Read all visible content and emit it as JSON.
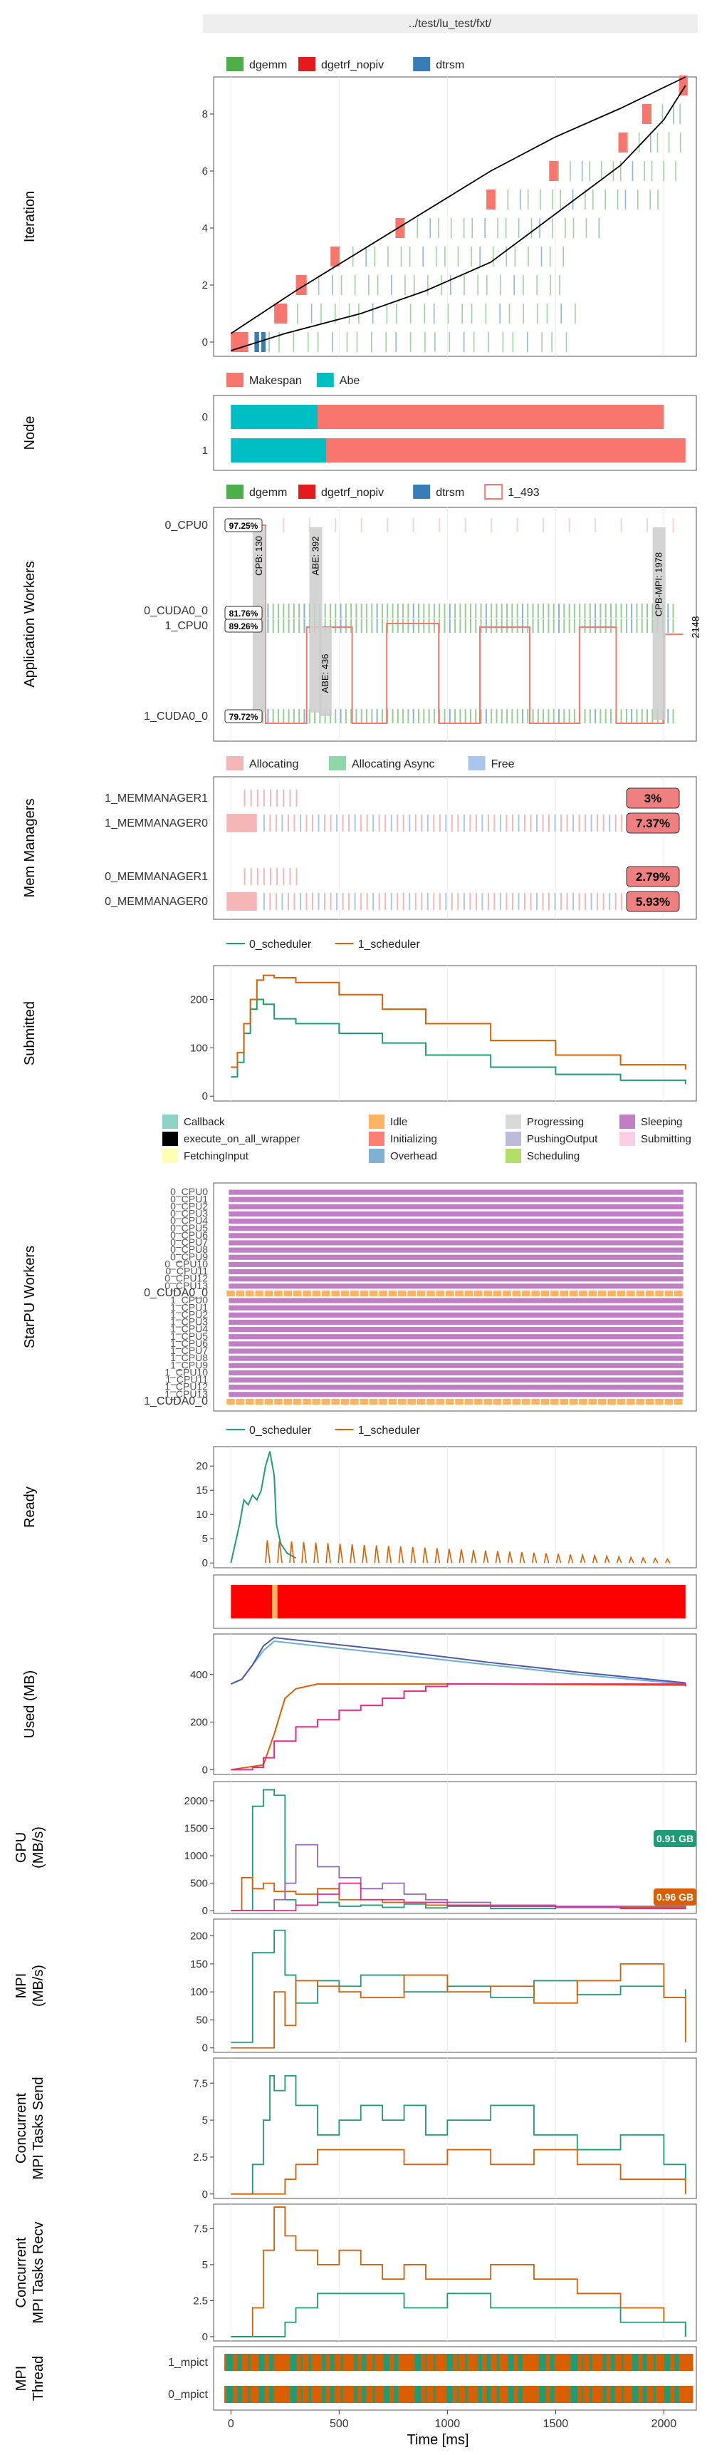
{
  "header": {
    "title": "../test/lu_test/fxt/"
  },
  "x_axis": {
    "label": "Time [ms]",
    "ticks": [
      0,
      500,
      1000,
      1500,
      2000
    ],
    "range": [
      -80,
      2150
    ]
  },
  "colors": {
    "dgemm": "#4daf4a",
    "dgetrf_nopiv": "#e41a1c",
    "dtrsm": "#377eb8",
    "makespan": "#f8766d",
    "abe": "#00bfc4",
    "allocating": "#f4b6b6",
    "allocating_async": "#8fd6a8",
    "free": "#a9c6ee",
    "scheduler0": "#1b9e77",
    "scheduler1": "#d95f02",
    "used_pink": "#e7298a",
    "used_blue": "#4a5aa8",
    "gpu_purple": "#9467bd",
    "mpi_orange": "#d95f02",
    "mpi_green": "#1b9e77",
    "state_idle": "#fdb462",
    "state_sleeping": "#c07ec4",
    "ready_red": "#ff0000"
  },
  "chart_data": [
    {
      "id": "iteration",
      "type": "scatter",
      "ylabel": "Iteration",
      "legend": {
        "placement": "top",
        "entries": [
          "dgemm",
          "dgetrf_nopiv",
          "dtrsm"
        ]
      },
      "y_ticks": [
        0,
        2,
        4,
        6,
        8
      ],
      "ylim": [
        -0.5,
        9.3
      ],
      "tasks": [
        {
          "iter": 0,
          "t": 0,
          "d": 80,
          "k": "dgetrf_nopiv"
        },
        {
          "iter": 0,
          "t": 110,
          "d": 20,
          "k": "dtrsm"
        },
        {
          "iter": 0,
          "t": 140,
          "d": 20,
          "k": "dtrsm"
        },
        {
          "iter": 1,
          "t": 200,
          "d": 60,
          "k": "dgetrf_nopiv"
        },
        {
          "iter": 2,
          "t": 300,
          "d": 50,
          "k": "dgetrf_nopiv"
        },
        {
          "iter": 3,
          "t": 460,
          "d": 40,
          "k": "dgetrf_nopiv"
        },
        {
          "iter": 4,
          "t": 760,
          "d": 40,
          "k": "dgetrf_nopiv"
        },
        {
          "iter": 5,
          "t": 1180,
          "d": 40,
          "k": "dgetrf_nopiv"
        },
        {
          "iter": 6,
          "t": 1470,
          "d": 40,
          "k": "dgetrf_nopiv"
        },
        {
          "iter": 7,
          "t": 1790,
          "d": 40,
          "k": "dgetrf_nopiv"
        },
        {
          "iter": 8,
          "t": 1900,
          "d": 40,
          "k": "dgetrf_nopiv"
        },
        {
          "iter": 9,
          "t": 2070,
          "d": 40,
          "k": "dgetrf_nopiv"
        }
      ],
      "upper_curve": [
        [
          0,
          -0.3
        ],
        [
          250,
          0.3
        ],
        [
          600,
          1.0
        ],
        [
          900,
          1.8
        ],
        [
          1200,
          2.8
        ],
        [
          1500,
          4.5
        ],
        [
          1800,
          6.2
        ],
        [
          2000,
          7.8
        ],
        [
          2100,
          9.0
        ]
      ],
      "lower_curve": [
        [
          0,
          0.3
        ],
        [
          300,
          1.8
        ],
        [
          600,
          3.2
        ],
        [
          900,
          4.6
        ],
        [
          1200,
          6.0
        ],
        [
          1500,
          7.2
        ],
        [
          1800,
          8.2
        ],
        [
          2100,
          9.3
        ]
      ]
    },
    {
      "id": "node",
      "type": "bar",
      "ylabel": "Node",
      "legend": {
        "placement": "top",
        "entries": [
          "Makespan",
          "Abe"
        ]
      },
      "categories": [
        "0",
        "1"
      ],
      "series": [
        {
          "name": "Abe",
          "values": [
            400,
            440
          ]
        },
        {
          "name": "Makespan",
          "values": [
            2000,
            2100
          ]
        }
      ]
    },
    {
      "id": "app_workers",
      "type": "bar",
      "ylabel": "Application Workers",
      "legend": {
        "placement": "top",
        "entries": [
          "dgemm",
          "dgetrf_nopiv",
          "dtrsm",
          "1_493"
        ]
      },
      "workers": [
        "0_CPU0",
        "0_CUDA0_0",
        "1_CPU0",
        "1_CUDA0_0"
      ],
      "percent_labels": [
        "97.25%",
        "81.76%",
        "89.26%",
        "79.72%"
      ],
      "abe_labels": [
        "CPB: 130",
        "ABE: 392",
        "ABE: 436",
        "CPB-MPI: 1978",
        "2148"
      ],
      "abe_markers": [
        {
          "t": 130,
          "label": 0
        },
        {
          "t": 392,
          "label": 1
        },
        {
          "t": 436,
          "label": 2
        },
        {
          "t": 1978,
          "label": 3
        }
      ]
    },
    {
      "id": "mem_managers",
      "type": "bar",
      "ylabel": "Mem Managers",
      "legend": {
        "placement": "top",
        "entries": [
          "Allocating",
          "Allocating Async",
          "Free"
        ]
      },
      "managers": [
        "1_MEMMANAGER1",
        "1_MEMMANAGER0",
        "0_MEMMANAGER1",
        "0_MEMMANAGER0"
      ],
      "percents": [
        "3%",
        "7.37%",
        "2.79%",
        "5.93%"
      ]
    },
    {
      "id": "submitted",
      "type": "line",
      "ylabel": "Submitted",
      "legend": {
        "placement": "top",
        "entries": [
          "0_scheduler",
          "1_scheduler"
        ]
      },
      "y_ticks": [
        0,
        100,
        200
      ],
      "ylim": [
        -10,
        270
      ],
      "series": [
        {
          "name": "0_scheduler",
          "x": [
            0,
            30,
            60,
            90,
            120,
            150,
            200,
            300,
            500,
            700,
            900,
            1200,
            1500,
            1800,
            2100
          ],
          "y": [
            40,
            70,
            130,
            180,
            200,
            190,
            160,
            150,
            130,
            110,
            85,
            60,
            45,
            33,
            25
          ]
        },
        {
          "name": "1_scheduler",
          "x": [
            0,
            30,
            60,
            90,
            120,
            150,
            200,
            300,
            500,
            700,
            900,
            1200,
            1500,
            1800,
            2100
          ],
          "y": [
            60,
            90,
            150,
            200,
            240,
            250,
            245,
            235,
            210,
            180,
            150,
            115,
            85,
            65,
            55
          ]
        }
      ]
    },
    {
      "id": "starpu_workers",
      "type": "bar",
      "ylabel": "StarPU Workers",
      "legend": {
        "placement": "top",
        "entries": [
          "Callback",
          "execute_on_all_wrapper",
          "FetchingInput",
          "Idle",
          "Initializing",
          "Overhead",
          "Progressing",
          "PushingOutput",
          "Scheduling",
          "Sleeping",
          "Submitting"
        ],
        "colors": [
          "#8dd3c7",
          "#000000",
          "#ffffb3",
          "#fdb462",
          "#fb8072",
          "#80b1d3",
          "#d9d9d9",
          "#bebada",
          "#b3de69",
          "#c07ec4",
          "#fccde5"
        ]
      },
      "workers": [
        "0_CPU0",
        "0_CPU1",
        "0_CPU2",
        "0_CPU3",
        "0_CPU4",
        "0_CPU5",
        "0_CPU6",
        "0_CPU7",
        "0_CPU8",
        "0_CPU9",
        "0_CPU10",
        "0_CPU11",
        "0_CPU12",
        "0_CPU13",
        "0_CUDA0_0",
        "1_CPU0",
        "1_CPU1",
        "1_CPU2",
        "1_CPU3",
        "1_CPU4",
        "1_CPU5",
        "1_CPU6",
        "1_CPU7",
        "1_CPU8",
        "1_CPU9",
        "1_CPU10",
        "1_CPU11",
        "1_CPU12",
        "1_CPU13",
        "1_CUDA0_0"
      ]
    },
    {
      "id": "ready",
      "type": "line",
      "ylabel": "Ready",
      "legend": {
        "placement": "top",
        "entries": [
          "0_scheduler",
          "1_scheduler"
        ]
      },
      "y_ticks": [
        0,
        5,
        10,
        15,
        20
      ],
      "ylim": [
        -1,
        24
      ],
      "series": [
        {
          "name": "0_scheduler",
          "x": [
            0,
            40,
            60,
            80,
            100,
            120,
            140,
            160,
            180,
            200,
            210,
            230,
            260,
            300
          ],
          "y": [
            0,
            8,
            13,
            12,
            14,
            13,
            15,
            20,
            23,
            18,
            8,
            4,
            2,
            1
          ]
        },
        {
          "name": "1_scheduler",
          "x": [
            0,
            120,
            140,
            160
          ],
          "y": [
            0,
            1,
            5,
            1
          ]
        }
      ]
    },
    {
      "id": "ready_bar",
      "type": "bar",
      "series": [
        {
          "name": "ready_range",
          "values": [
            2100
          ]
        }
      ]
    },
    {
      "id": "used",
      "type": "line",
      "ylabel": "Used (MB)",
      "y_ticks": [
        0,
        200,
        400
      ],
      "ylim": [
        -20,
        570
      ],
      "series": [
        {
          "name": "blue",
          "x": [
            0,
            50,
            100,
            150,
            200,
            400,
            800,
            1200,
            1600,
            2100
          ],
          "y": [
            360,
            380,
            440,
            500,
            540,
            520,
            480,
            440,
            400,
            360
          ]
        },
        {
          "name": "navy",
          "x": [
            0,
            50,
            100,
            150,
            200,
            400,
            800,
            1200,
            1600,
            2100
          ],
          "y": [
            360,
            380,
            440,
            520,
            555,
            535,
            495,
            450,
            410,
            365
          ]
        },
        {
          "name": "orange",
          "x": [
            0,
            150,
            200,
            250,
            300,
            400,
            500,
            800,
            1200,
            2100
          ],
          "y": [
            0,
            20,
            150,
            300,
            340,
            360,
            360,
            360,
            360,
            355
          ]
        },
        {
          "name": "pink",
          "x": [
            0,
            100,
            150,
            200,
            300,
            400,
            500,
            600,
            700,
            800,
            900,
            1000,
            2100
          ],
          "y": [
            0,
            10,
            50,
            120,
            180,
            210,
            250,
            270,
            300,
            330,
            350,
            360,
            350
          ]
        }
      ]
    },
    {
      "id": "gpu",
      "type": "line",
      "ylabel": "GPU (MB/s)",
      "y_ticks": [
        0,
        500,
        1000,
        1500,
        2000
      ],
      "ylim": [
        -50,
        2350
      ],
      "badges": [
        "0.91 GB",
        "0.96 GB"
      ],
      "series": [
        {
          "name": "green",
          "x": [
            0,
            100,
            150,
            200,
            250,
            300,
            400,
            500,
            600,
            700,
            800,
            900,
            1000,
            1200,
            1500,
            2100
          ],
          "y": [
            0,
            1900,
            2200,
            2100,
            200,
            100,
            150,
            80,
            100,
            60,
            120,
            50,
            80,
            40,
            60,
            50
          ]
        },
        {
          "name": "orange",
          "x": [
            0,
            50,
            100,
            150,
            200,
            300,
            400,
            500,
            700,
            900,
            1200,
            1500,
            2100
          ],
          "y": [
            0,
            600,
            400,
            500,
            350,
            300,
            400,
            200,
            150,
            100,
            80,
            60,
            50
          ]
        },
        {
          "name": "purple",
          "x": [
            0,
            200,
            250,
            300,
            400,
            500,
            600,
            700,
            800,
            900,
            1000,
            1200,
            1500,
            2100
          ],
          "y": [
            0,
            200,
            500,
            1200,
            800,
            600,
            400,
            500,
            300,
            200,
            150,
            100,
            80,
            60
          ]
        },
        {
          "name": "pink",
          "x": [
            0,
            300,
            400,
            500,
            600,
            800,
            1000,
            1200,
            1500,
            1800,
            2100
          ],
          "y": [
            0,
            100,
            300,
            500,
            200,
            150,
            100,
            80,
            60,
            40,
            30
          ]
        }
      ]
    },
    {
      "id": "mpi",
      "type": "line",
      "ylabel": "MPI (MB/s)",
      "y_ticks": [
        0,
        50,
        100,
        150,
        200
      ],
      "ylim": [
        -8,
        230
      ],
      "series": [
        {
          "name": "green",
          "x": [
            0,
            100,
            200,
            250,
            300,
            400,
            500,
            600,
            800,
            1000,
            1200,
            1400,
            1600,
            1800,
            2000,
            2100
          ],
          "y": [
            10,
            170,
            210,
            130,
            80,
            120,
            110,
            130,
            100,
            110,
            90,
            120,
            95,
            110,
            90,
            105
          ]
        },
        {
          "name": "orange",
          "x": [
            0,
            200,
            250,
            300,
            400,
            500,
            600,
            800,
            1000,
            1200,
            1400,
            1600,
            1800,
            2000,
            2100
          ],
          "y": [
            0,
            100,
            40,
            120,
            110,
            100,
            90,
            130,
            100,
            110,
            80,
            120,
            150,
            90,
            10
          ]
        }
      ]
    },
    {
      "id": "mpi_send",
      "type": "line",
      "ylabel": "Concurrent MPI Tasks Send",
      "y_ticks": [
        0.0,
        2.5,
        5.0,
        7.5
      ],
      "ylim": [
        -0.3,
        9.2
      ],
      "series": [
        {
          "name": "green",
          "x": [
            0,
            100,
            150,
            180,
            200,
            250,
            300,
            400,
            500,
            600,
            700,
            800,
            900,
            1000,
            1200,
            1400,
            1600,
            1800,
            2000,
            2100
          ],
          "y": [
            0,
            2,
            5,
            8,
            7,
            8,
            6,
            4,
            5,
            6,
            5,
            6,
            4,
            5,
            6,
            4,
            3,
            4,
            2,
            1
          ]
        },
        {
          "name": "orange",
          "x": [
            0,
            200,
            250,
            300,
            400,
            500,
            600,
            800,
            1000,
            1200,
            1400,
            1600,
            1800,
            2000,
            2100
          ],
          "y": [
            0,
            0,
            1,
            2,
            3,
            3,
            3,
            2,
            3,
            2,
            3,
            2,
            1,
            1,
            0
          ]
        }
      ]
    },
    {
      "id": "mpi_recv",
      "type": "line",
      "ylabel": "Concurrent MPI Tasks Recv",
      "y_ticks": [
        0.0,
        2.5,
        5.0,
        7.5
      ],
      "ylim": [
        -0.3,
        9.2
      ],
      "series": [
        {
          "name": "orange",
          "x": [
            0,
            100,
            150,
            200,
            250,
            300,
            400,
            500,
            600,
            700,
            800,
            900,
            1000,
            1200,
            1400,
            1600,
            1800,
            2000,
            2100
          ],
          "y": [
            0,
            2,
            6,
            9,
            7,
            6,
            5,
            6,
            5,
            4,
            5,
            4,
            4,
            5,
            4,
            3,
            2,
            1,
            0
          ]
        },
        {
          "name": "green",
          "x": [
            0,
            200,
            250,
            300,
            400,
            500,
            600,
            800,
            1000,
            1200,
            1400,
            1600,
            1800,
            2000,
            2100
          ],
          "y": [
            0,
            0,
            1,
            2,
            3,
            3,
            3,
            2,
            3,
            2,
            2,
            2,
            1,
            1,
            0
          ]
        }
      ]
    },
    {
      "id": "mpi_thread",
      "type": "bar",
      "ylabel": "MPI Thread",
      "threads": [
        "1_mpict",
        "0_mpict"
      ]
    }
  ]
}
